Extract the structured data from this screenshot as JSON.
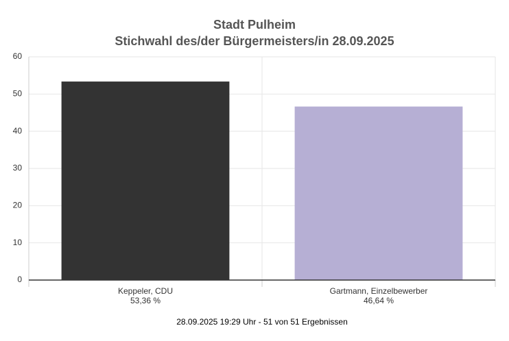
{
  "chart_data": {
    "type": "bar",
    "title": "Stadt Pulheim",
    "subtitle": "Stichwahl des/der Bürgermeisters/in 28.09.2025",
    "categories": [
      "Keppeler, CDU",
      "Gartmann, Einzelbewerber"
    ],
    "values": [
      53.36,
      46.64
    ],
    "value_labels": [
      "53,36 %",
      "46,64 %"
    ],
    "colors": [
      "#333333",
      "#b6afd4"
    ],
    "ylim": [
      0,
      60
    ],
    "yticks": [
      0,
      10,
      20,
      30,
      40,
      50,
      60
    ],
    "grid": true,
    "footnote": "28.09.2025 19:29 Uhr - 51 von 51 Ergebnissen"
  }
}
